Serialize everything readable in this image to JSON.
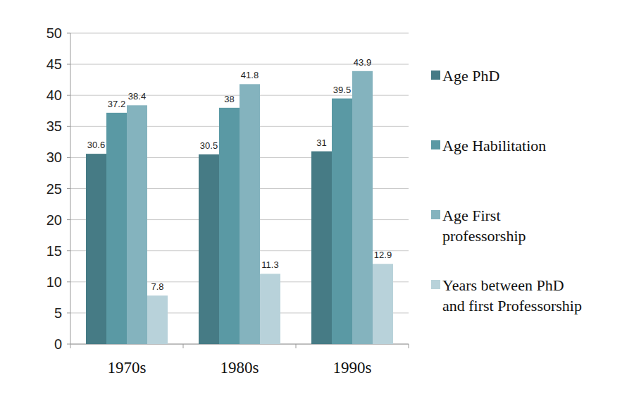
{
  "chart_data": {
    "type": "bar",
    "categories": [
      "1970s",
      "1980s",
      "1990s"
    ],
    "series": [
      {
        "name": "Age PhD",
        "color": "#467b85",
        "values": [
          30.6,
          30.5,
          31
        ]
      },
      {
        "name": "Age Habilitation",
        "color": "#5a99a4",
        "values": [
          37.2,
          38,
          39.5
        ]
      },
      {
        "name": "Age First professorship",
        "color": "#84b3be",
        "values": [
          38.4,
          41.8,
          43.9
        ]
      },
      {
        "name": "Years between PhD and first Professorship",
        "color": "#b8d2da",
        "values": [
          7.8,
          11.3,
          12.9
        ]
      }
    ],
    "ylim": [
      0,
      50
    ],
    "yticks": [
      0,
      5,
      10,
      15,
      20,
      25,
      30,
      35,
      40,
      45,
      50
    ],
    "grid": true,
    "legend": "right",
    "data_labels": true
  }
}
